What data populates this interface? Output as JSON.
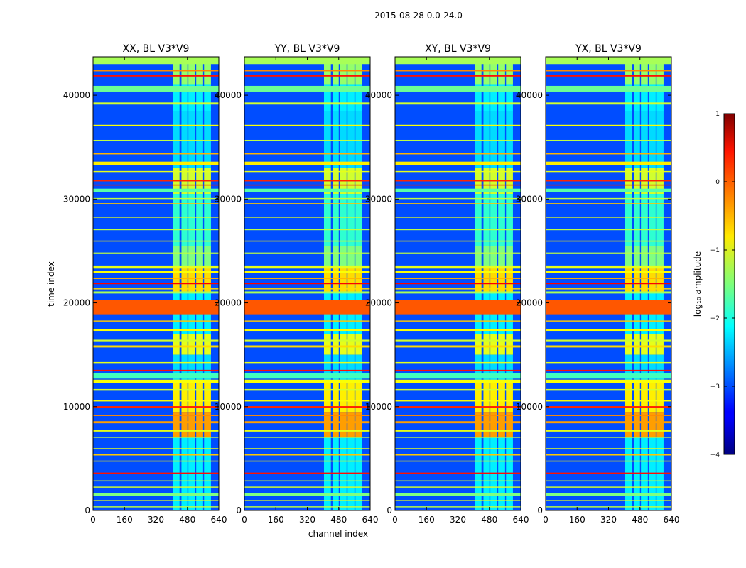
{
  "figure": {
    "suptitle": "2015-08-28 0.0-24.0",
    "xlabel": "channel index",
    "ylabel": "time index",
    "colorbar_label": "log₁₀ amplitude"
  },
  "chart_data": {
    "type": "heatmap",
    "colormap": "jet",
    "panels": [
      {
        "title": "XX, BL V3*V9"
      },
      {
        "title": "YY, BL V3*V9"
      },
      {
        "title": "XY, BL V3*V9"
      },
      {
        "title": "YX, BL V3*V9"
      }
    ],
    "xlim": [
      0,
      640
    ],
    "ylim": [
      0,
      43700
    ],
    "xticks": [
      0,
      160,
      320,
      480,
      640
    ],
    "xtick_labels": [
      "0",
      "160",
      "320",
      "480",
      "640"
    ],
    "yticks": [
      0,
      10000,
      20000,
      30000,
      40000
    ],
    "ytick_labels": [
      "0",
      "10000",
      "20000",
      "30000",
      "40000"
    ],
    "colorbar": {
      "range": [
        -4,
        1
      ],
      "ticks": [
        -4,
        -3,
        -2,
        -1,
        0,
        1
      ],
      "tick_labels": [
        "−4",
        "−3",
        "−2",
        "−1",
        "0",
        "1"
      ]
    },
    "background_level": -3,
    "active_channel_range": [
      400,
      600
    ],
    "channel_blocks": [
      [
        405,
        440
      ],
      [
        450,
        480
      ],
      [
        485,
        520
      ],
      [
        525,
        560
      ],
      [
        565,
        600
      ]
    ],
    "rfi_bands": [
      {
        "t": [
          43000,
          43700
        ],
        "value": -1.3
      },
      {
        "t": [
          42300,
          42450
        ],
        "value": -0.3
      },
      {
        "t": [
          41800,
          41950
        ],
        "value": 0.3
      },
      {
        "t": [
          40350,
          40900
        ],
        "value": -1.6
      },
      {
        "t": [
          39100,
          39300
        ],
        "value": -1.1
      },
      {
        "t": [
          37000,
          37150
        ],
        "value": -0.9
      },
      {
        "t": [
          35600,
          35700
        ],
        "value": -1.2
      },
      {
        "t": [
          34300,
          34400
        ],
        "value": -0.5
      },
      {
        "t": [
          33300,
          33600
        ],
        "value": -0.8
      },
      {
        "t": [
          32600,
          32700
        ],
        "value": -1.0
      },
      {
        "t": [
          31700,
          31800
        ],
        "value": 0.2
      },
      {
        "t": [
          31300,
          31400
        ],
        "value": 0.3
      },
      {
        "t": [
          30700,
          31000
        ],
        "value": -1.7
      },
      {
        "t": [
          30000,
          30100
        ],
        "value": -1.2
      },
      {
        "t": [
          29500,
          29600
        ],
        "value": -0.6
      },
      {
        "t": [
          28200,
          28300
        ],
        "value": -1.0
      },
      {
        "t": [
          27000,
          27100
        ],
        "value": -1.2
      },
      {
        "t": [
          25900,
          26000
        ],
        "value": -0.8
      },
      {
        "t": [
          24700,
          24850
        ],
        "value": -1.2
      },
      {
        "t": [
          23300,
          23600
        ],
        "value": -1.0
      },
      {
        "t": [
          22900,
          23050
        ],
        "value": -0.9
      },
      {
        "t": [
          22300,
          22400
        ],
        "value": -0.5
      },
      {
        "t": [
          21800,
          21950
        ],
        "value": 0.4
      },
      {
        "t": [
          21300,
          21400
        ],
        "value": -0.7
      },
      {
        "t": [
          20900,
          21100
        ],
        "value": -1.3
      },
      {
        "t": [
          18900,
          20300
        ],
        "value": -0.05
      },
      {
        "t": [
          18200,
          18300
        ],
        "value": -0.6
      },
      {
        "t": [
          17300,
          17450
        ],
        "value": -0.9
      },
      {
        "t": [
          16300,
          16450
        ],
        "value": -1.1
      },
      {
        "t": [
          15700,
          15900
        ],
        "value": -0.7
      },
      {
        "t": [
          14200,
          14300
        ],
        "value": -1.0
      },
      {
        "t": [
          13400,
          13550
        ],
        "value": 0.3
      },
      {
        "t": [
          12700,
          13200
        ],
        "value": -1.8
      },
      {
        "t": [
          12300,
          12600
        ],
        "value": -0.9
      },
      {
        "t": [
          11600,
          11700
        ],
        "value": -1.1
      },
      {
        "t": [
          10500,
          10650
        ],
        "value": -0.9
      },
      {
        "t": [
          9900,
          10050
        ],
        "value": 0.2
      },
      {
        "t": [
          9100,
          9200
        ],
        "value": -0.3
      },
      {
        "t": [
          8400,
          8600
        ],
        "value": -0.4
      },
      {
        "t": [
          7600,
          7750
        ],
        "value": -1.0
      },
      {
        "t": [
          7000,
          7100
        ],
        "value": -1.2
      },
      {
        "t": [
          5900,
          6000
        ],
        "value": -1.0
      },
      {
        "t": [
          5300,
          5450
        ],
        "value": -0.6
      },
      {
        "t": [
          4700,
          4800
        ],
        "value": -0.8
      },
      {
        "t": [
          3500,
          3650
        ],
        "value": 0.3
      },
      {
        "t": [
          2800,
          2900
        ],
        "value": -1.0
      },
      {
        "t": [
          2200,
          2300
        ],
        "value": -1.1
      },
      {
        "t": [
          1400,
          1700
        ],
        "value": -1.5
      },
      {
        "t": [
          900,
          1000
        ],
        "value": -1.0
      },
      {
        "t": [
          300,
          400
        ],
        "value": -1.2
      }
    ],
    "channel_activity": [
      {
        "t": [
          41000,
          43700
        ],
        "value": -1.4
      },
      {
        "t": [
          38500,
          41000
        ],
        "value": -2.2
      },
      {
        "t": [
          33000,
          38500
        ],
        "value": -2.3
      },
      {
        "t": [
          30500,
          33000
        ],
        "value": -1.1
      },
      {
        "t": [
          25500,
          30500
        ],
        "value": -1.9
      },
      {
        "t": [
          23500,
          25500
        ],
        "value": -1.5
      },
      {
        "t": [
          21000,
          23500
        ],
        "value": -0.7
      },
      {
        "t": [
          17000,
          21000
        ],
        "value": -2.2
      },
      {
        "t": [
          15000,
          17000
        ],
        "value": -1.0
      },
      {
        "t": [
          12500,
          15000
        ],
        "value": -2.3
      },
      {
        "t": [
          9500,
          12500
        ],
        "value": -0.8
      },
      {
        "t": [
          7000,
          9500
        ],
        "value": -0.4
      },
      {
        "t": [
          0,
          7000
        ],
        "value": -2.2
      }
    ]
  }
}
